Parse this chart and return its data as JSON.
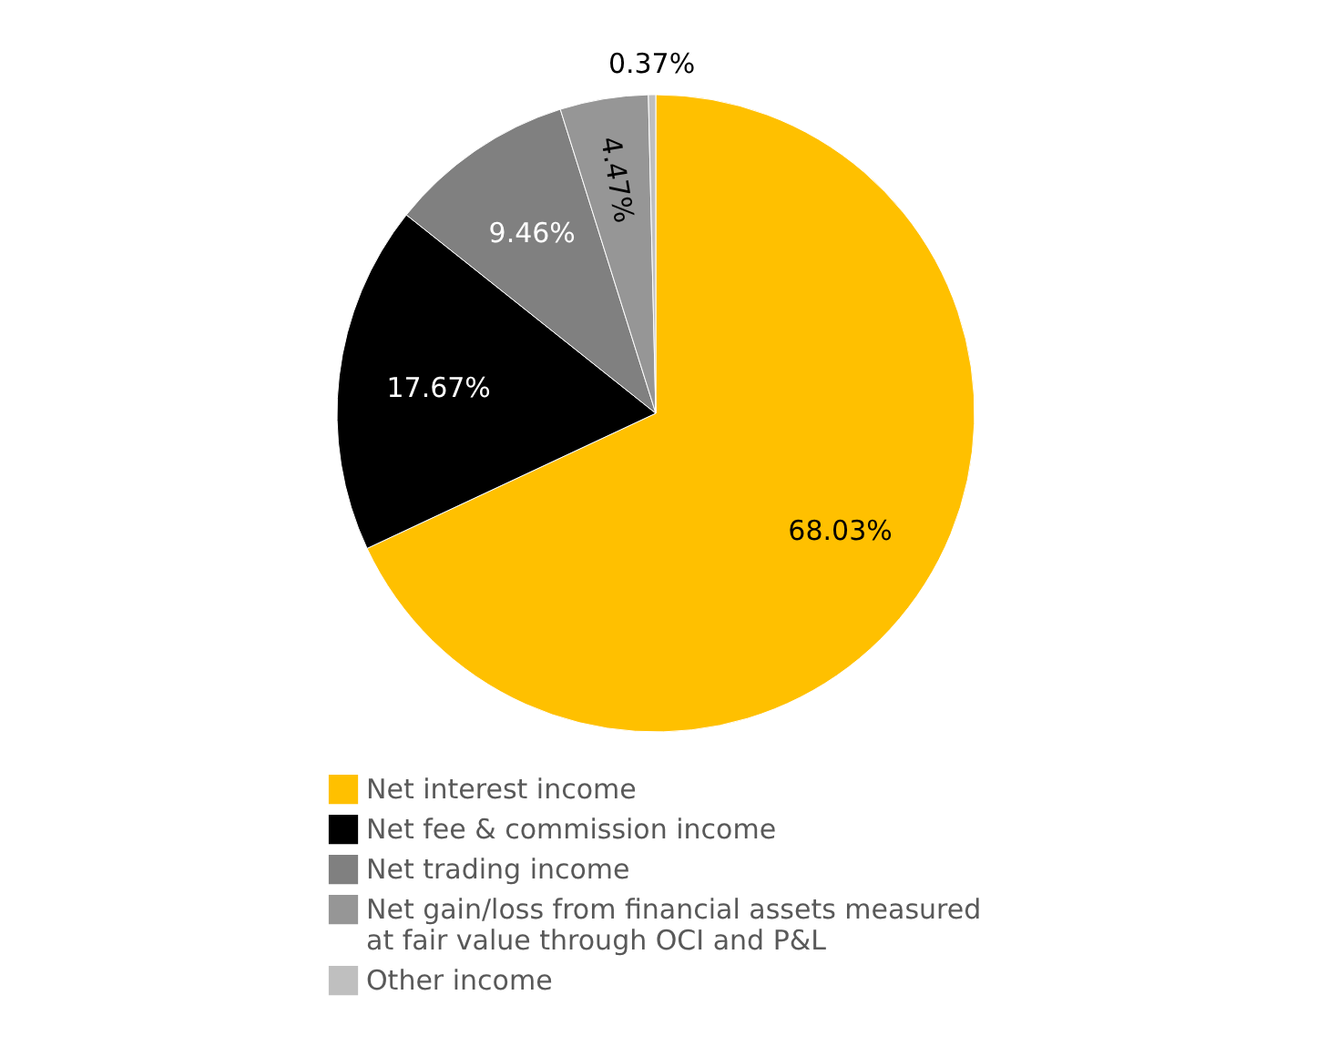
{
  "chart_data": {
    "type": "pie",
    "categories": [
      "Net interest income",
      "Net fee & commission income",
      "Net trading income",
      "Net gain/loss from financial assets measured at fair value through OCI and P&L",
      "Other income"
    ],
    "values": [
      68.03,
      17.67,
      9.46,
      4.47,
      0.37
    ],
    "value_labels": [
      "68.03%",
      "17.67%",
      "9.46%",
      "4.47%",
      "0.37%"
    ],
    "colors": [
      "#ffc000",
      "#000000",
      "#808080",
      "#969696",
      "#bfbfbf"
    ],
    "legend": "bottom"
  }
}
